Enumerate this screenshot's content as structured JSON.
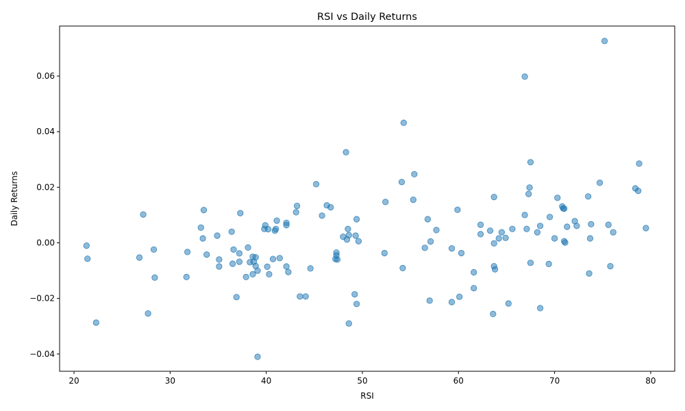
{
  "chart_data": {
    "type": "scatter",
    "title": "RSI vs Daily Returns",
    "xlabel": "RSI",
    "ylabel": "Daily Returns",
    "xlim": [
      18.5,
      82.5
    ],
    "ylim": [
      -0.0462,
      0.078
    ],
    "xticks": [
      20,
      30,
      40,
      50,
      60,
      70,
      80
    ],
    "yticks": [
      -0.04,
      -0.02,
      0.0,
      0.02,
      0.04,
      0.06
    ],
    "ytick_labels": [
      "−0.04",
      "−0.02",
      "0.00",
      "0.02",
      "0.04",
      "0.06"
    ],
    "grid": false,
    "marker_color": "#1f77b4",
    "marker_alpha": 0.5,
    "points": [
      [
        21.3,
        -0.001
      ],
      [
        21.4,
        -0.0057
      ],
      [
        22.3,
        -0.0287
      ],
      [
        26.8,
        -0.0053
      ],
      [
        27.2,
        0.0102
      ],
      [
        27.7,
        -0.0254
      ],
      [
        28.3,
        -0.0024
      ],
      [
        28.4,
        -0.0125
      ],
      [
        31.7,
        -0.0123
      ],
      [
        31.8,
        -0.0033
      ],
      [
        33.2,
        0.0055
      ],
      [
        33.4,
        0.0016
      ],
      [
        33.5,
        0.0118
      ],
      [
        33.8,
        -0.0042
      ],
      [
        34.9,
        0.0026
      ],
      [
        35.1,
        -0.006
      ],
      [
        35.1,
        -0.0085
      ],
      [
        36.4,
        0.004
      ],
      [
        36.5,
        -0.0075
      ],
      [
        36.6,
        -0.0024
      ],
      [
        36.9,
        -0.0195
      ],
      [
        37.2,
        -0.0068
      ],
      [
        37.2,
        -0.0038
      ],
      [
        37.3,
        0.0107
      ],
      [
        37.9,
        -0.0123
      ],
      [
        38.1,
        -0.0017
      ],
      [
        38.3,
        -0.007
      ],
      [
        38.6,
        -0.005
      ],
      [
        38.6,
        -0.0113
      ],
      [
        38.7,
        -0.0068
      ],
      [
        38.9,
        -0.0052
      ],
      [
        38.9,
        -0.0083
      ],
      [
        39.1,
        -0.01
      ],
      [
        39.1,
        -0.041
      ],
      [
        39.8,
        0.005
      ],
      [
        39.9,
        0.0063
      ],
      [
        40.1,
        -0.0086
      ],
      [
        40.2,
        0.0049
      ],
      [
        40.3,
        -0.0113
      ],
      [
        40.7,
        -0.0058
      ],
      [
        40.9,
        0.0044
      ],
      [
        41.0,
        0.005
      ],
      [
        41.1,
        0.008
      ],
      [
        41.4,
        -0.0055
      ],
      [
        42.1,
        -0.0085
      ],
      [
        42.1,
        0.0072
      ],
      [
        42.1,
        0.0064
      ],
      [
        42.3,
        -0.0105
      ],
      [
        43.1,
        0.011
      ],
      [
        43.2,
        0.0133
      ],
      [
        43.5,
        -0.0193
      ],
      [
        44.1,
        -0.0193
      ],
      [
        44.6,
        -0.0092
      ],
      [
        45.2,
        0.0211
      ],
      [
        45.8,
        0.0098
      ],
      [
        46.3,
        0.0135
      ],
      [
        46.7,
        0.0128
      ],
      [
        47.2,
        -0.0058
      ],
      [
        47.3,
        -0.0035
      ],
      [
        47.3,
        -0.0045
      ],
      [
        47.4,
        -0.006
      ],
      [
        48.0,
        0.0022
      ],
      [
        48.3,
        0.0326
      ],
      [
        48.4,
        0.0012
      ],
      [
        48.5,
        0.005
      ],
      [
        48.6,
        0.0028
      ],
      [
        48.6,
        -0.029
      ],
      [
        49.2,
        -0.0185
      ],
      [
        49.3,
        0.0026
      ],
      [
        49.4,
        -0.022
      ],
      [
        49.4,
        0.0085
      ],
      [
        49.6,
        0.0006
      ],
      [
        52.3,
        -0.0037
      ],
      [
        52.4,
        0.0147
      ],
      [
        54.1,
        0.0219
      ],
      [
        54.2,
        -0.0091
      ],
      [
        54.3,
        0.0432
      ],
      [
        55.3,
        0.0155
      ],
      [
        55.4,
        0.0247
      ],
      [
        56.5,
        -0.0018
      ],
      [
        56.8,
        0.0085
      ],
      [
        57.0,
        -0.0208
      ],
      [
        57.1,
        0.0005
      ],
      [
        57.7,
        0.0046
      ],
      [
        59.3,
        -0.002
      ],
      [
        59.3,
        -0.0213
      ],
      [
        59.9,
        0.0119
      ],
      [
        60.1,
        -0.0194
      ],
      [
        60.3,
        -0.0037
      ],
      [
        61.6,
        -0.0106
      ],
      [
        61.6,
        -0.0163
      ],
      [
        62.3,
        0.0031
      ],
      [
        62.3,
        0.0065
      ],
      [
        63.3,
        0.0044
      ],
      [
        63.6,
        -0.0256
      ],
      [
        63.7,
        -0.0084
      ],
      [
        63.7,
        -0.0002
      ],
      [
        63.7,
        0.0165
      ],
      [
        63.8,
        -0.0095
      ],
      [
        64.2,
        0.0016
      ],
      [
        64.5,
        0.0038
      ],
      [
        64.9,
        0.0018
      ],
      [
        65.2,
        -0.0218
      ],
      [
        65.6,
        0.005
      ],
      [
        66.9,
        0.0598
      ],
      [
        66.9,
        0.01
      ],
      [
        67.1,
        0.005
      ],
      [
        67.3,
        0.0176
      ],
      [
        67.4,
        0.0199
      ],
      [
        67.5,
        0.029
      ],
      [
        67.5,
        -0.0072
      ],
      [
        68.2,
        0.0038
      ],
      [
        68.5,
        -0.0235
      ],
      [
        68.5,
        0.0061
      ],
      [
        69.4,
        -0.0076
      ],
      [
        69.5,
        0.0093
      ],
      [
        70.0,
        0.0016
      ],
      [
        70.3,
        0.0162
      ],
      [
        70.8,
        0.0131
      ],
      [
        70.9,
        0.0124
      ],
      [
        71.0,
        0.0123
      ],
      [
        71.0,
        0.0006
      ],
      [
        71.1,
        0.0001
      ],
      [
        71.3,
        0.0058
      ],
      [
        72.1,
        0.0078
      ],
      [
        72.3,
        0.0061
      ],
      [
        73.5,
        0.0167
      ],
      [
        73.6,
        -0.011
      ],
      [
        73.7,
        0.0016
      ],
      [
        73.8,
        0.0067
      ],
      [
        74.7,
        0.0216
      ],
      [
        75.2,
        0.0726
      ],
      [
        75.6,
        0.0065
      ],
      [
        75.8,
        -0.0084
      ],
      [
        76.1,
        0.0038
      ],
      [
        78.4,
        0.0196
      ],
      [
        78.7,
        0.0187
      ],
      [
        78.8,
        0.0285
      ],
      [
        79.5,
        0.0053
      ]
    ]
  }
}
